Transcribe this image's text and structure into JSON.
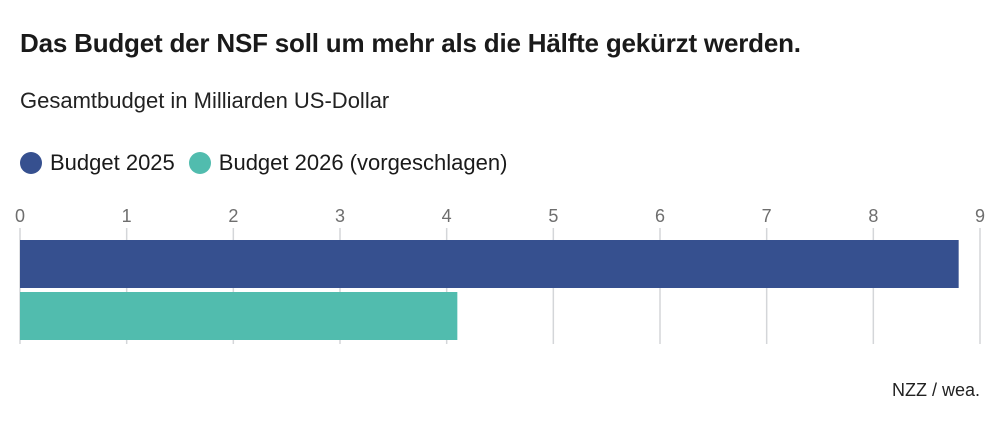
{
  "title": "Das Budget der NSF soll um mehr als die Hälfte gekürzt werden.",
  "subtitle": "Gesamtbudget in Milliarden US-Dollar",
  "source": "NZZ / wea.",
  "chart_data": {
    "type": "bar",
    "orientation": "horizontal",
    "title": "Das Budget der NSF soll um mehr als die Hälfte gekürzt werden.",
    "subtitle": "Gesamtbudget in Milliarden US-Dollar",
    "xlim": [
      0,
      9
    ],
    "ticks": [
      "0",
      "1",
      "2",
      "3",
      "4",
      "5",
      "6",
      "7",
      "8",
      "9"
    ],
    "grid": true,
    "legend_position": "top-left",
    "series": [
      {
        "name": "Budget 2025",
        "value": 8.8,
        "color": "#36508f"
      },
      {
        "name": "Budget 2026 (vorgeschlagen)",
        "value": 4.1,
        "color": "#51bcae"
      }
    ]
  }
}
